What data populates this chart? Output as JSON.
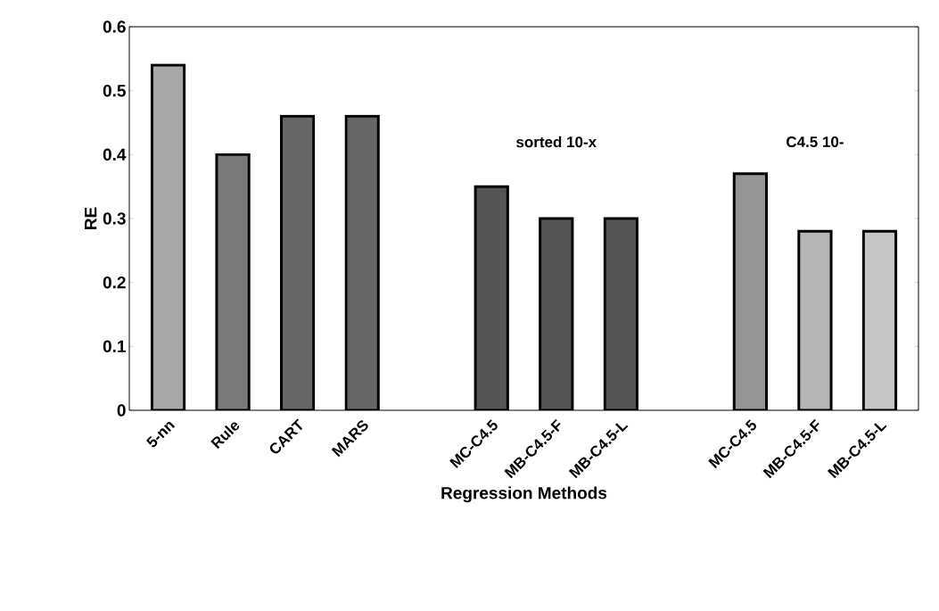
{
  "chart_data": {
    "type": "bar",
    "xlabel": "Regression Methods",
    "ylabel": "RE",
    "categories": [
      "5-nn",
      "Rule",
      "CART",
      "MARS",
      null,
      "MC-C4.5",
      "MB-C4.5-F",
      "MB-C4.5-L",
      null,
      "MC-C4.5",
      "MB-C4.5-F",
      "MB-C4.5-L"
    ],
    "values": [
      0.54,
      0.4,
      0.46,
      0.46,
      null,
      0.35,
      0.3,
      0.3,
      null,
      0.37,
      0.28,
      0.28
    ],
    "colors": [
      "#a8a8a8",
      "#7a7a7a",
      "#666666",
      "#666666",
      null,
      "#555555",
      "#555555",
      "#555555",
      null,
      "#959595",
      "#b5b5b5",
      "#c5c5c5"
    ],
    "ylim": [
      0,
      0.6
    ],
    "yticks": [
      0,
      0.1,
      0.2,
      0.3,
      0.4,
      0.5,
      0.6
    ],
    "annotations": [
      "sorted 10-x",
      "C4.5 10-"
    ]
  }
}
